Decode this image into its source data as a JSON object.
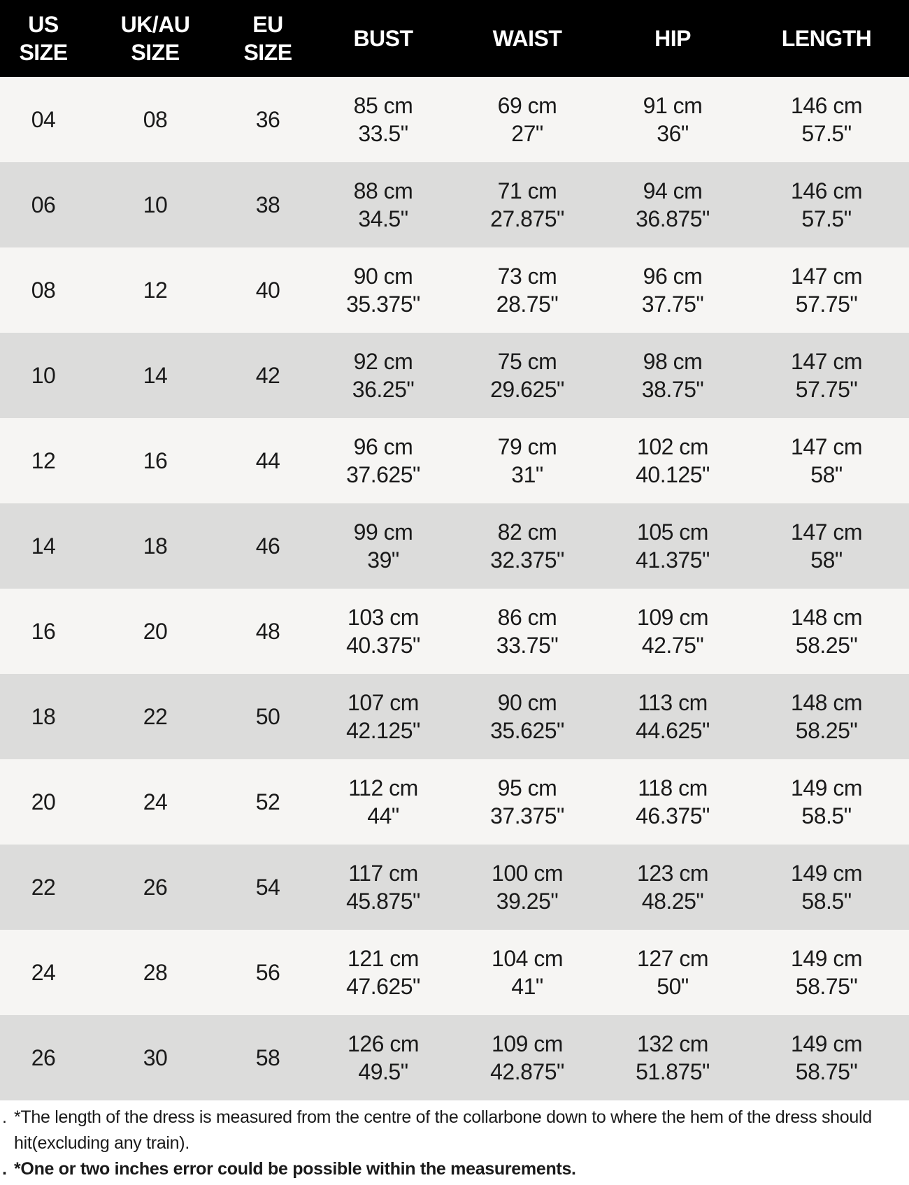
{
  "headers": [
    [
      "US",
      "SIZE"
    ],
    [
      "UK/AU",
      "SIZE"
    ],
    [
      "EU",
      "SIZE"
    ],
    [
      "BUST"
    ],
    [
      "WAIST"
    ],
    [
      "HIP"
    ],
    [
      "LENGTH"
    ]
  ],
  "rows": [
    [
      "04",
      "08",
      "36",
      [
        "85 cm",
        "33.5\""
      ],
      [
        "69 cm",
        "27\""
      ],
      [
        "91 cm",
        "36\""
      ],
      [
        "146 cm",
        "57.5\""
      ]
    ],
    [
      "06",
      "10",
      "38",
      [
        "88 cm",
        "34.5\""
      ],
      [
        "71 cm",
        "27.875\""
      ],
      [
        "94 cm",
        "36.875\""
      ],
      [
        "146 cm",
        "57.5\""
      ]
    ],
    [
      "08",
      "12",
      "40",
      [
        "90 cm",
        "35.375\""
      ],
      [
        "73 cm",
        "28.75\""
      ],
      [
        "96 cm",
        "37.75\""
      ],
      [
        "147 cm",
        "57.75\""
      ]
    ],
    [
      "10",
      "14",
      "42",
      [
        "92 cm",
        "36.25\""
      ],
      [
        "75 cm",
        "29.625\""
      ],
      [
        "98 cm",
        "38.75\""
      ],
      [
        "147 cm",
        "57.75\""
      ]
    ],
    [
      "12",
      "16",
      "44",
      [
        "96 cm",
        "37.625\""
      ],
      [
        "79 cm",
        "31\""
      ],
      [
        "102 cm",
        "40.125\""
      ],
      [
        "147 cm",
        "58\""
      ]
    ],
    [
      "14",
      "18",
      "46",
      [
        "99 cm",
        "39\""
      ],
      [
        "82 cm",
        "32.375\""
      ],
      [
        "105 cm",
        "41.375\""
      ],
      [
        "147 cm",
        "58\""
      ]
    ],
    [
      "16",
      "20",
      "48",
      [
        "103 cm",
        "40.375\""
      ],
      [
        "86 cm",
        "33.75\""
      ],
      [
        "109 cm",
        "42.75\""
      ],
      [
        "148 cm",
        "58.25\""
      ]
    ],
    [
      "18",
      "22",
      "50",
      [
        "107 cm",
        "42.125\""
      ],
      [
        "90 cm",
        "35.625\""
      ],
      [
        "113 cm",
        "44.625\""
      ],
      [
        "148 cm",
        "58.25\""
      ]
    ],
    [
      "20",
      "24",
      "52",
      [
        "112 cm",
        "44\""
      ],
      [
        "95 cm",
        "37.375\""
      ],
      [
        "118 cm",
        "46.375\""
      ],
      [
        "149 cm",
        "58.5\""
      ]
    ],
    [
      "22",
      "26",
      "54",
      [
        "117 cm",
        "45.875\""
      ],
      [
        "100 cm",
        "39.25\""
      ],
      [
        "123 cm",
        "48.25\""
      ],
      [
        "149 cm",
        "58.5\""
      ]
    ],
    [
      "24",
      "28",
      "56",
      [
        "121 cm",
        "47.625\""
      ],
      [
        "104 cm",
        "41\""
      ],
      [
        "127 cm",
        "50\""
      ],
      [
        "149 cm",
        "58.75\""
      ]
    ],
    [
      "26",
      "30",
      "58",
      [
        "126 cm",
        "49.5\""
      ],
      [
        "109 cm",
        "42.875\""
      ],
      [
        "132 cm",
        "51.875\""
      ],
      [
        "149 cm",
        "58.75\""
      ]
    ]
  ],
  "notes": [
    {
      "text": "*The length of the dress is measured from the centre of the collarbone down to where the hem of the dress should hit(excluding any train).",
      "bold": false
    },
    {
      "text": "*One or two inches error could be possible within the measurements.",
      "bold": true
    }
  ],
  "bullet": ".",
  "colors": {
    "header_bg": "#000000",
    "row_light": "#f6f5f3",
    "row_dark": "#dcdcdb"
  }
}
